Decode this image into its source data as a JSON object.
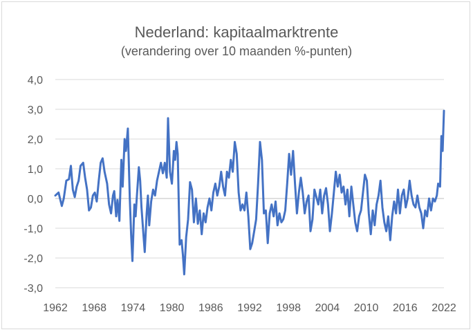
{
  "chart_data": {
    "type": "line",
    "title": "Nederland: kapitaalmarktrente",
    "subtitle": "(verandering over 10 maanden %-punten)",
    "xlabel": "",
    "ylabel": "",
    "xlim": [
      1962,
      2022
    ],
    "ylim": [
      -3.0,
      4.0
    ],
    "grid": "horizontal",
    "line_color": "#4472c4",
    "x_ticks": [
      "1962",
      "1968",
      "1974",
      "1980",
      "1986",
      "1992",
      "1998",
      "2004",
      "2010",
      "2016",
      "2022"
    ],
    "y_ticks": [
      "4,0",
      "3,0",
      "2,0",
      "1,0",
      "0,0",
      "-1,0",
      "-2,0",
      "-3,0"
    ],
    "series": [
      {
        "values": [
          [
            1962.0,
            0.1
          ],
          [
            1962.5,
            0.2
          ],
          [
            1963.0,
            -0.25
          ],
          [
            1963.3,
            0.0
          ],
          [
            1963.7,
            0.6
          ],
          [
            1964.1,
            0.65
          ],
          [
            1964.4,
            1.1
          ],
          [
            1964.7,
            0.3
          ],
          [
            1965.0,
            0.05
          ],
          [
            1965.3,
            0.4
          ],
          [
            1965.6,
            0.6
          ],
          [
            1965.9,
            1.1
          ],
          [
            1966.3,
            1.2
          ],
          [
            1966.6,
            0.7
          ],
          [
            1966.9,
            0.3
          ],
          [
            1967.2,
            -0.4
          ],
          [
            1967.5,
            -0.3
          ],
          [
            1967.8,
            0.1
          ],
          [
            1968.1,
            0.2
          ],
          [
            1968.4,
            -0.1
          ],
          [
            1968.7,
            0.6
          ],
          [
            1969.0,
            1.2
          ],
          [
            1969.3,
            1.35
          ],
          [
            1969.6,
            0.9
          ],
          [
            1970.0,
            0.5
          ],
          [
            1970.3,
            -0.2
          ],
          [
            1970.6,
            -0.5
          ],
          [
            1970.9,
            0.1
          ],
          [
            1971.1,
            0.25
          ],
          [
            1971.4,
            -0.6
          ],
          [
            1971.6,
            -0.05
          ],
          [
            1971.9,
            -0.75
          ],
          [
            1972.2,
            1.3
          ],
          [
            1972.4,
            0.4
          ],
          [
            1972.7,
            2.0
          ],
          [
            1972.9,
            1.6
          ],
          [
            1973.2,
            2.35
          ],
          [
            1973.5,
            0.0
          ],
          [
            1973.7,
            -1.2
          ],
          [
            1973.9,
            -2.1
          ],
          [
            1974.2,
            -0.2
          ],
          [
            1974.4,
            -0.6
          ],
          [
            1974.6,
            0.1
          ],
          [
            1974.9,
            1.05
          ],
          [
            1975.1,
            0.6
          ],
          [
            1975.3,
            -0.3
          ],
          [
            1975.6,
            -1.2
          ],
          [
            1975.8,
            -1.8
          ],
          [
            1976.1,
            -0.5
          ],
          [
            1976.3,
            0.1
          ],
          [
            1976.5,
            -0.9
          ],
          [
            1976.8,
            -0.1
          ],
          [
            1977.1,
            0.3
          ],
          [
            1977.4,
            0.1
          ],
          [
            1977.7,
            0.6
          ],
          [
            1978.0,
            0.9
          ],
          [
            1978.3,
            1.2
          ],
          [
            1978.6,
            0.85
          ],
          [
            1978.9,
            1.2
          ],
          [
            1979.2,
            0.7
          ],
          [
            1979.4,
            2.7
          ],
          [
            1979.7,
            0.9
          ],
          [
            1980.0,
            0.5
          ],
          [
            1980.3,
            1.6
          ],
          [
            1980.5,
            1.3
          ],
          [
            1980.7,
            1.9
          ],
          [
            1980.9,
            1.5
          ],
          [
            1981.2,
            -1.55
          ],
          [
            1981.5,
            -1.4
          ],
          [
            1981.7,
            -1.9
          ],
          [
            1981.9,
            -2.55
          ],
          [
            1982.2,
            -1.3
          ],
          [
            1982.5,
            -0.7
          ],
          [
            1982.8,
            0.55
          ],
          [
            1983.1,
            0.3
          ],
          [
            1983.4,
            -0.8
          ],
          [
            1983.7,
            0.0
          ],
          [
            1984.0,
            -0.85
          ],
          [
            1984.3,
            -0.4
          ],
          [
            1984.6,
            -1.2
          ],
          [
            1984.9,
            -0.5
          ],
          [
            1985.2,
            -0.8
          ],
          [
            1985.5,
            -0.3
          ],
          [
            1985.8,
            0.0
          ],
          [
            1986.1,
            -0.4
          ],
          [
            1986.4,
            0.2
          ],
          [
            1986.7,
            0.5
          ],
          [
            1987.0,
            0.1
          ],
          [
            1987.3,
            0.4
          ],
          [
            1987.6,
            0.9
          ],
          [
            1987.9,
            0.4
          ],
          [
            1988.2,
            0.1
          ],
          [
            1988.5,
            0.9
          ],
          [
            1988.8,
            0.7
          ],
          [
            1989.1,
            1.3
          ],
          [
            1989.4,
            0.9
          ],
          [
            1989.7,
            1.9
          ],
          [
            1990.0,
            1.5
          ],
          [
            1990.3,
            0.2
          ],
          [
            1990.6,
            -0.4
          ],
          [
            1990.9,
            -0.2
          ],
          [
            1991.2,
            -0.4
          ],
          [
            1991.5,
            0.2
          ],
          [
            1991.8,
            -0.6
          ],
          [
            1992.1,
            -1.7
          ],
          [
            1992.4,
            -1.5
          ],
          [
            1992.7,
            -1.1
          ],
          [
            1993.0,
            -0.7
          ],
          [
            1993.3,
            0.5
          ],
          [
            1993.6,
            1.9
          ],
          [
            1993.9,
            1.3
          ],
          [
            1994.2,
            -0.5
          ],
          [
            1994.5,
            -0.4
          ],
          [
            1994.8,
            -1.5
          ],
          [
            1995.1,
            -0.5
          ],
          [
            1995.4,
            -0.2
          ],
          [
            1995.7,
            -0.6
          ],
          [
            1996.0,
            -0.1
          ],
          [
            1996.3,
            -0.9
          ],
          [
            1996.6,
            -0.5
          ],
          [
            1996.9,
            -0.8
          ],
          [
            1997.2,
            -0.7
          ],
          [
            1997.5,
            -0.4
          ],
          [
            1997.8,
            0.5
          ],
          [
            1998.1,
            1.5
          ],
          [
            1998.4,
            0.8
          ],
          [
            1998.7,
            1.6
          ],
          [
            1999.0,
            0.5
          ],
          [
            1999.3,
            -0.5
          ],
          [
            1999.6,
            0.2
          ],
          [
            1999.9,
            0.7
          ],
          [
            2000.2,
            0.2
          ],
          [
            2000.5,
            -0.5
          ],
          [
            2000.8,
            -0.1
          ],
          [
            2001.1,
            0.1
          ],
          [
            2001.4,
            -1.1
          ],
          [
            2001.7,
            -0.7
          ],
          [
            2002.0,
            0.3
          ],
          [
            2002.3,
            0.05
          ],
          [
            2002.6,
            -0.2
          ],
          [
            2002.9,
            0.3
          ],
          [
            2003.2,
            -0.5
          ],
          [
            2003.5,
            0.1
          ],
          [
            2003.8,
            0.35
          ],
          [
            2004.1,
            -0.2
          ],
          [
            2004.4,
            -1.1
          ],
          [
            2004.7,
            -0.5
          ],
          [
            2005.0,
            0.2
          ],
          [
            2005.3,
            0.9
          ],
          [
            2005.6,
            0.4
          ],
          [
            2005.9,
            0.8
          ],
          [
            2006.2,
            0.2
          ],
          [
            2006.5,
            0.4
          ],
          [
            2006.8,
            -0.2
          ],
          [
            2007.1,
            0.3
          ],
          [
            2007.4,
            -0.6
          ],
          [
            2007.7,
            0.4
          ],
          [
            2008.0,
            -0.2
          ],
          [
            2008.3,
            -0.8
          ],
          [
            2008.6,
            -1.1
          ],
          [
            2008.9,
            -0.6
          ],
          [
            2009.2,
            -0.4
          ],
          [
            2009.5,
            0.2
          ],
          [
            2009.8,
            0.8
          ],
          [
            2010.1,
            0.6
          ],
          [
            2010.4,
            -0.5
          ],
          [
            2010.7,
            -1.2
          ],
          [
            2011.0,
            -0.4
          ],
          [
            2011.3,
            -0.9
          ],
          [
            2011.6,
            -0.2
          ],
          [
            2011.9,
            0.1
          ],
          [
            2012.2,
            0.6
          ],
          [
            2012.5,
            -0.3
          ],
          [
            2012.8,
            -0.8
          ],
          [
            2013.1,
            -1.1
          ],
          [
            2013.4,
            -0.6
          ],
          [
            2013.7,
            -1.4
          ],
          [
            2014.0,
            -0.6
          ],
          [
            2014.3,
            -0.1
          ],
          [
            2014.6,
            -0.5
          ],
          [
            2014.9,
            0.3
          ],
          [
            2015.2,
            -0.5
          ],
          [
            2015.5,
            0.1
          ],
          [
            2015.8,
            0.3
          ],
          [
            2016.1,
            -0.3
          ],
          [
            2016.4,
            0.0
          ],
          [
            2016.7,
            0.6
          ],
          [
            2017.0,
            0.1
          ],
          [
            2017.3,
            -0.2
          ],
          [
            2017.6,
            -0.3
          ],
          [
            2017.9,
            0.1
          ],
          [
            2018.2,
            -0.3
          ],
          [
            2018.5,
            -0.5
          ],
          [
            2018.8,
            -1.0
          ],
          [
            2019.1,
            -0.4
          ],
          [
            2019.4,
            -0.6
          ],
          [
            2019.7,
            0.0
          ],
          [
            2020.0,
            -0.4
          ],
          [
            2020.3,
            0.0
          ],
          [
            2020.6,
            -0.1
          ],
          [
            2020.9,
            0.1
          ],
          [
            2021.1,
            0.5
          ],
          [
            2021.4,
            0.4
          ],
          [
            2021.6,
            2.1
          ],
          [
            2021.8,
            1.6
          ],
          [
            2022.0,
            2.95
          ]
        ]
      }
    ]
  }
}
